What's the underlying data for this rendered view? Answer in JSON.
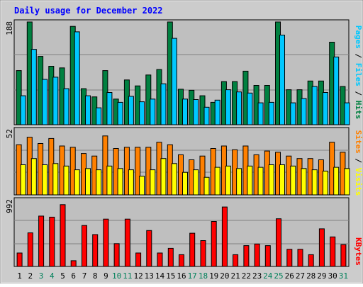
{
  "chart_data": {
    "title": "Daily usage for December 2022",
    "type": "bar",
    "categories": [
      "1",
      "2",
      "3",
      "4",
      "5",
      "6",
      "7",
      "8",
      "9",
      "10",
      "11",
      "12",
      "13",
      "14",
      "15",
      "16",
      "17",
      "18",
      "19",
      "20",
      "21",
      "22",
      "23",
      "24",
      "25",
      "26",
      "27",
      "28",
      "29",
      "30",
      "31"
    ],
    "weekend_days": [
      "3",
      "4",
      "10",
      "11",
      "17",
      "18",
      "24",
      "25",
      "31"
    ],
    "panels": [
      {
        "id": "hits",
        "ymax_label": "188",
        "ymax": 188,
        "right_labels": [
          "Pages",
          "Files",
          "Hits"
        ],
        "series": [
          {
            "name": "Hits",
            "color": "#008040",
            "values": [
              99,
              188,
              125,
              107,
              104,
              180,
              66,
              51,
              99,
              47,
              82,
              71,
              91,
              101,
              188,
              65,
              63,
              53,
              41,
              79,
              79,
              98,
              72,
              72,
              188,
              64,
              64,
              80,
              80,
              151,
              70
            ]
          },
          {
            "name": "Files",
            "color": "#00C8FF",
            "values": [
              53,
              138,
              83,
              87,
              66,
              170,
              53,
              31,
              59,
              41,
              52,
              42,
              47,
              75,
              158,
              47,
              46,
              32,
              45,
              64,
              60,
              58,
              40,
              41,
              164,
              40,
              48,
              70,
              59,
              124,
              40
            ]
          },
          {
            "name": "Pages",
            "color": "#00C8FF",
            "values": []
          }
        ]
      },
      {
        "id": "visits",
        "ymax_label": "52",
        "ymax": 52,
        "right_labels": [
          "Sites",
          "Visits"
        ],
        "series": [
          {
            "name": "Visits",
            "color": "#FF8000",
            "values": [
              40,
              46,
              41,
              45,
              39,
              38,
              33,
              31,
              47,
              37,
              38,
              38,
              38,
              42,
              40,
              32,
              28,
              31,
              37,
              39,
              36,
              39,
              32,
              35,
              34,
              31,
              29,
              29,
              28,
              42,
              34
            ]
          },
          {
            "name": "Sites",
            "color": "#FFFF00",
            "values": [
              24,
              29,
              24,
              25,
              23,
              20,
              21,
              20,
              23,
              21,
              20,
              15,
              20,
              29,
              25,
              18,
              20,
              14,
              22,
              23,
              21,
              23,
              22,
              24,
              24,
              23,
              21,
              20,
              19,
              22,
              21
            ]
          }
        ]
      },
      {
        "id": "kbytes",
        "ymax_label": "992",
        "ymax": 992,
        "right_labels": [
          "KBytes"
        ],
        "series": [
          {
            "name": "KBytes",
            "color": "#FF0000",
            "values": [
              200,
              500,
              750,
              735,
              920,
              85,
              610,
              475,
              705,
              340,
              705,
              200,
              535,
              200,
              270,
              175,
              495,
              385,
              670,
              885,
              175,
              310,
              335,
              310,
              710,
              255,
              255,
              175,
              560,
              440,
              325
            ]
          }
        ]
      }
    ]
  }
}
